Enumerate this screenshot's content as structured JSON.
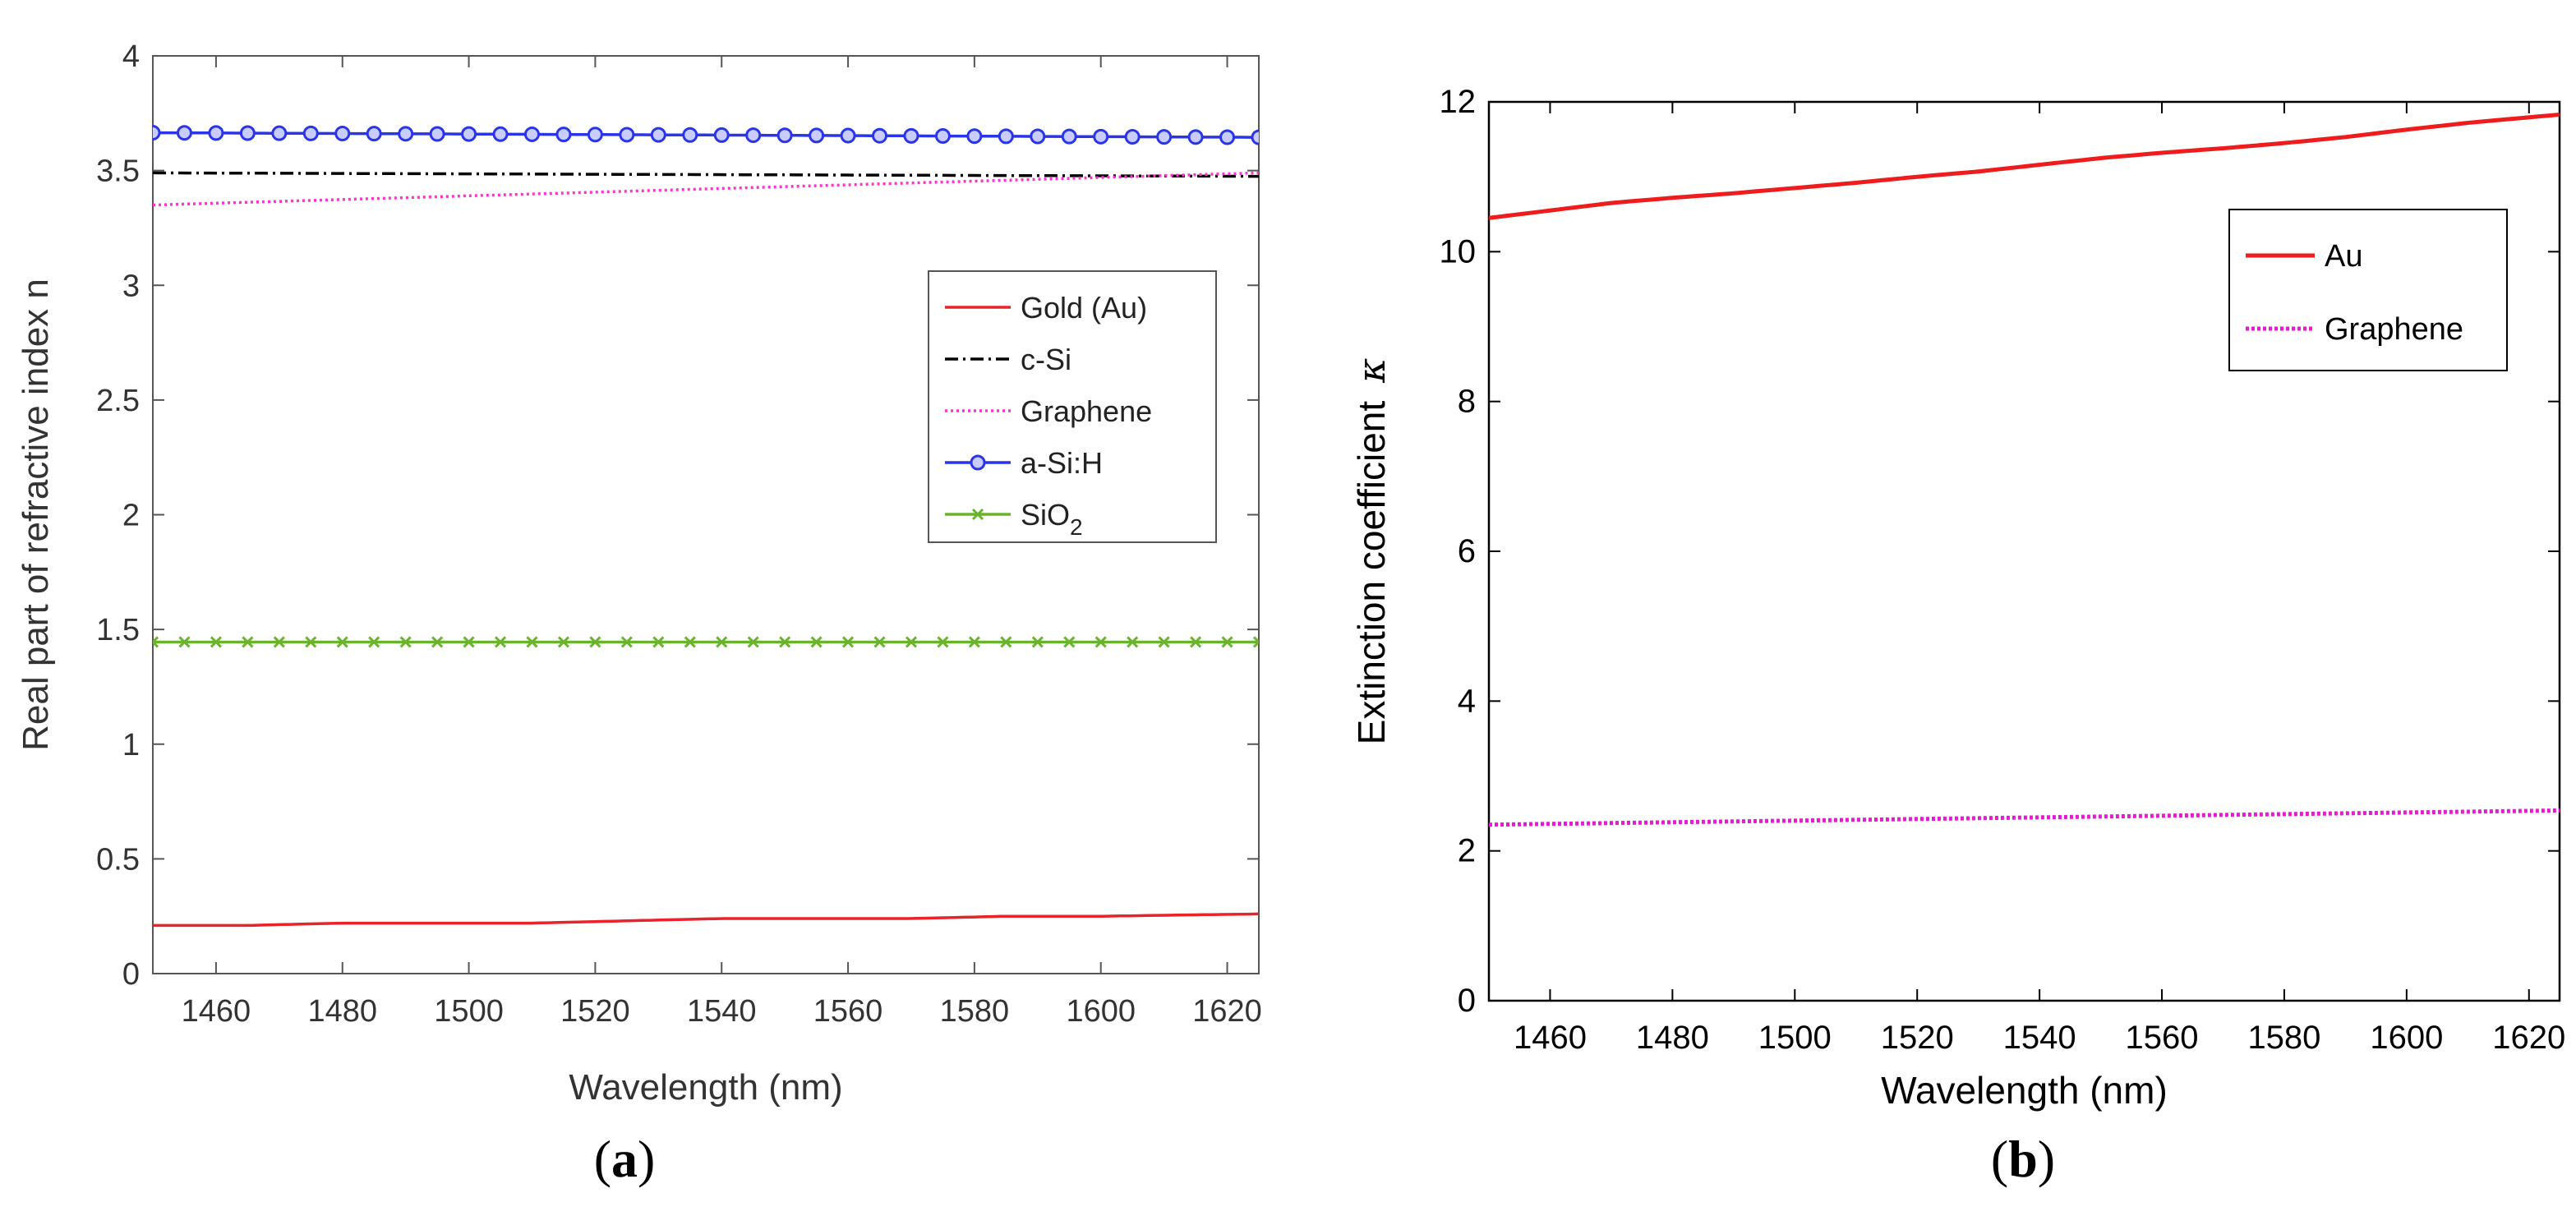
{
  "chart_data": [
    {
      "type": "line",
      "panel_label": "(a)",
      "panel_letter": "a",
      "xlabel": "Wavelength (nm)",
      "ylabel": "Real part of refractive index n",
      "xlim": [
        1450,
        1625
      ],
      "ylim": [
        0,
        4
      ],
      "xticks": [
        1460,
        1480,
        1500,
        1520,
        1540,
        1560,
        1580,
        1600,
        1620
      ],
      "yticks": [
        0,
        0.5,
        1,
        1.5,
        2,
        2.5,
        3,
        3.5,
        4
      ],
      "legend_position": "center-right",
      "series": [
        {
          "name": "Gold (Au)",
          "color": "#e8232a",
          "style": "solid",
          "marker": "none",
          "x": [
            1450,
            1465,
            1480,
            1495,
            1510,
            1525,
            1540,
            1555,
            1570,
            1585,
            1600,
            1612,
            1625
          ],
          "y": [
            0.21,
            0.21,
            0.22,
            0.22,
            0.22,
            0.23,
            0.24,
            0.24,
            0.24,
            0.25,
            0.25,
            0.255,
            0.26
          ]
        },
        {
          "name": "c-Si",
          "color": "#000000",
          "style": "dashdot",
          "marker": "none",
          "x": [
            1450,
            1625
          ],
          "y": [
            3.49,
            3.475
          ]
        },
        {
          "name": "Graphene",
          "color": "#ff33cc",
          "style": "dotted",
          "marker": "none",
          "x": [
            1450,
            1625
          ],
          "y": [
            3.35,
            3.49
          ]
        },
        {
          "name": "a-Si:H",
          "color": "#2b35e8",
          "style": "solid",
          "marker": "circle",
          "x": [
            1450,
            1625
          ],
          "y": [
            3.665,
            3.645
          ]
        },
        {
          "name": "SiO",
          "name_sub": "2",
          "color": "#6ab42d",
          "style": "solid",
          "marker": "x",
          "x": [
            1450,
            1625
          ],
          "y": [
            1.445,
            1.445
          ]
        }
      ]
    },
    {
      "type": "line",
      "panel_label": "(b)",
      "panel_letter": "b",
      "xlabel": "Wavelength (nm)",
      "ylabel": "Extinction coefficient",
      "ylabel_symbol": "κ",
      "xlim": [
        1450,
        1625
      ],
      "ylim": [
        0,
        12
      ],
      "xticks": [
        1460,
        1480,
        1500,
        1520,
        1540,
        1560,
        1580,
        1600,
        1620
      ],
      "yticks": [
        0,
        2,
        4,
        6,
        8,
        10,
        12
      ],
      "legend_position": "top-right",
      "series": [
        {
          "name": "Au",
          "color": "#ee1c1c",
          "style": "solid",
          "marker": "none",
          "x": [
            1450,
            1460,
            1470,
            1480,
            1490,
            1500,
            1510,
            1520,
            1530,
            1540,
            1550,
            1560,
            1570,
            1580,
            1590,
            1600,
            1610,
            1625
          ],
          "y": [
            10.45,
            10.55,
            10.65,
            10.72,
            10.78,
            10.85,
            10.92,
            11.0,
            11.07,
            11.16,
            11.25,
            11.32,
            11.38,
            11.45,
            11.53,
            11.63,
            11.72,
            11.83
          ]
        },
        {
          "name": "Graphene",
          "color": "#e31ccf",
          "style": "dotted",
          "marker": "none",
          "x": [
            1450,
            1625
          ],
          "y": [
            2.35,
            2.54
          ]
        }
      ]
    }
  ]
}
